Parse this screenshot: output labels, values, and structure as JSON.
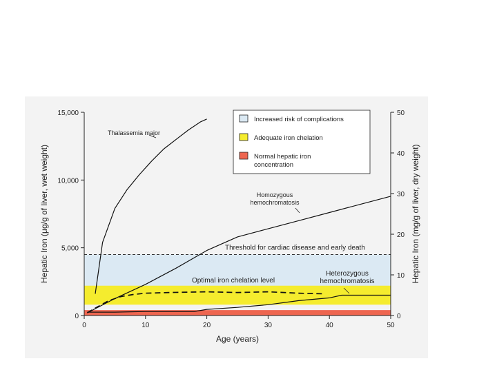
{
  "chart_data": {
    "type": "line",
    "xlabel": "Age (years)",
    "ylabel_left": "Hepatic Iron (μg/g of liver, wet weight)",
    "ylabel_right": "Hepatic Iron (mg/g of liver, dry weight)",
    "xlim": [
      0,
      50
    ],
    "ylim_left": [
      0,
      15000
    ],
    "ylim_right": [
      0,
      50
    ],
    "x_ticks": [
      "0",
      "10",
      "20",
      "30",
      "40",
      "50"
    ],
    "y_ticks_left": [
      "0",
      "5,000",
      "10,000",
      "15,000"
    ],
    "y_ticks_right": [
      "0",
      "10",
      "20",
      "30",
      "40",
      "50"
    ],
    "colors": {
      "risk": "#dbe9f3",
      "adequate": "#f5ec2e",
      "normal": "#ee6650",
      "line": "#111111",
      "panel": "#f3f3f3"
    },
    "bands": [
      {
        "name": "Increased risk of complications",
        "from": 2000,
        "to": 4500,
        "color": "#dbe9f3"
      },
      {
        "name": "Adequate iron chelation",
        "from": 800,
        "to": 2200,
        "color": "#f5ec2e"
      },
      {
        "name": "Normal hepatic iron concentration",
        "from": 0,
        "to": 400,
        "color": "#ee6650"
      }
    ],
    "legend": {
      "placement": "top-right",
      "items": [
        {
          "label_lines": [
            "Increased risk of complications"
          ],
          "color": "#dbe9f3"
        },
        {
          "label_lines": [
            "Adequate iron chelation"
          ],
          "color": "#f5ec2e"
        },
        {
          "label_lines": [
            "Normal hepatic iron",
            "concentration"
          ],
          "color": "#ee6650"
        }
      ]
    },
    "threshold": {
      "y": 4500,
      "label": "Threshold for cardiac disease and early death"
    },
    "series": [
      {
        "name": "Thalassemia major",
        "style": "solid",
        "x": [
          1.8,
          3,
          5,
          7,
          9,
          11,
          13,
          15,
          17,
          19,
          20
        ],
        "y": [
          1600,
          5400,
          7900,
          9300,
          10400,
          11400,
          12300,
          13000,
          13700,
          14300,
          14500
        ]
      },
      {
        "name_lines": [
          "Homozygous",
          "hemochromatosis"
        ],
        "style": "solid",
        "x": [
          0.5,
          5,
          10,
          15,
          20,
          25,
          30,
          35,
          40,
          45,
          50
        ],
        "y": [
          200,
          1250,
          2300,
          3500,
          4800,
          5800,
          6400,
          7000,
          7600,
          8200,
          8800
        ]
      },
      {
        "name_lines": [
          "Optimal iron chelation level"
        ],
        "style": "dashed",
        "x": [
          0.5,
          2,
          4,
          6,
          8,
          10,
          14,
          20,
          25,
          30,
          35,
          39
        ],
        "y": [
          200,
          600,
          1100,
          1400,
          1550,
          1650,
          1700,
          1750,
          1700,
          1750,
          1650,
          1600
        ]
      },
      {
        "name_lines": [
          "Heterozygous",
          "hemochromatosis"
        ],
        "style": "solid",
        "x": [
          0.5,
          5,
          10,
          15,
          18,
          20,
          25,
          30,
          35,
          40,
          42,
          45,
          50
        ],
        "y": [
          250,
          250,
          300,
          300,
          300,
          450,
          600,
          800,
          1100,
          1300,
          1500,
          1500,
          1500
        ]
      }
    ]
  }
}
